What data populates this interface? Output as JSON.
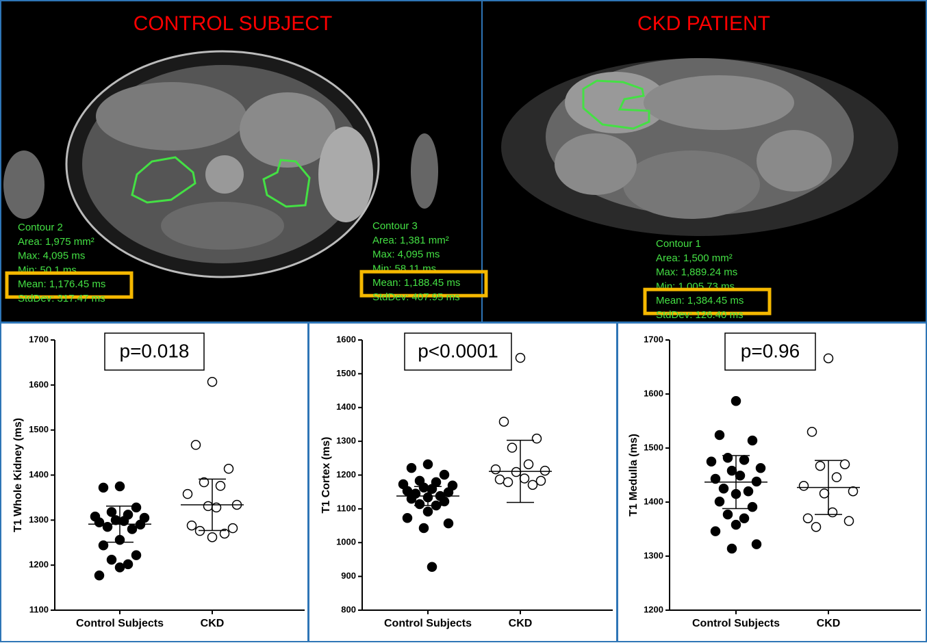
{
  "images": [
    {
      "title": "CONTROL SUBJECT",
      "contours": [
        {
          "lines": [
            "Contour 2",
            "Area: 1,975 mm²",
            "Max: 4,095 ms",
            "Min: 50.1 ms",
            "Mean: 1,176.45 ms",
            "StdDev: 317.47 ms"
          ]
        },
        {
          "lines": [
            "Contour 3",
            "Area: 1,381 mm²",
            "Max: 4,095 ms",
            "Min: 58.11 ms",
            "Mean: 1,188.45 ms",
            "StdDev: 407.95 ms"
          ]
        }
      ]
    },
    {
      "title": "CKD PATIENT",
      "contours": [
        {
          "lines": [
            "Contour 1",
            "Area: 1,500 mm²",
            "Max: 1,889.24 ms",
            "Min: 1,005.73 ms",
            "Mean: 1,384.45 ms",
            "StdDev: 126.40 ms"
          ]
        }
      ]
    }
  ],
  "chart_data": [
    {
      "type": "scatter",
      "annotation": "p=0.018",
      "y_label": "T1 Whole Kidney (ms)",
      "categories": [
        "Control Subjects",
        "CKD"
      ],
      "points": [
        [
          1375,
          1372,
          1328,
          1318,
          1312,
          1308,
          1305,
          1300,
          1298,
          1295,
          1290,
          1285,
          1280,
          1256,
          1244,
          1222,
          1212,
          1202,
          1195,
          1177
        ],
        [
          1607,
          1467,
          1414,
          1384,
          1376,
          1358,
          1334,
          1331,
          1328,
          1288,
          1282,
          1276,
          1270,
          1262
        ]
      ],
      "fills": [
        "#000000",
        "#ffffff"
      ],
      "means": [
        1291,
        1334
      ],
      "sds": [
        40,
        57
      ],
      "ylim": [
        1100,
        1700
      ],
      "yticks": [
        1100,
        1200,
        1300,
        1400,
        1500,
        1600,
        1700
      ]
    },
    {
      "type": "scatter",
      "annotation": "p<0.0001",
      "y_label": "T1 Cortex (ms)",
      "categories": [
        "Control Subjects",
        "CKD"
      ],
      "points": [
        [
          1232,
          1221,
          1201,
          1183,
          1179,
          1173,
          1169,
          1163,
          1159,
          1153,
          1149,
          1145,
          1138,
          1134,
          1130,
          1122,
          1114,
          1110,
          1092,
          1073,
          1057,
          1043,
          928
        ],
        [
          1547,
          1358,
          1308,
          1281,
          1232,
          1217,
          1213,
          1209,
          1190,
          1187,
          1183,
          1179,
          1171
        ]
      ],
      "fills": [
        "#000000",
        "#ffffff"
      ],
      "means": [
        1138,
        1211
      ],
      "sds": [
        28,
        92
      ],
      "ylim": [
        800,
        1600
      ],
      "yticks": [
        800,
        900,
        1000,
        1100,
        1200,
        1300,
        1400,
        1500,
        1600
      ]
    },
    {
      "type": "scatter",
      "annotation": "p=0.96",
      "y_label": "T1 Medulla (ms)",
      "categories": [
        "Control Subjects",
        "CKD"
      ],
      "points": [
        [
          1587,
          1524,
          1514,
          1482,
          1478,
          1475,
          1463,
          1458,
          1449,
          1443,
          1438,
          1425,
          1420,
          1415,
          1401,
          1391,
          1377,
          1370,
          1358,
          1346,
          1322,
          1314
        ],
        [
          1666,
          1530,
          1470,
          1467,
          1446,
          1430,
          1420,
          1416,
          1381,
          1370,
          1365,
          1354
        ]
      ],
      "fills": [
        "#000000",
        "#ffffff"
      ],
      "means": [
        1437,
        1427
      ],
      "sds": [
        49,
        50
      ],
      "ylim": [
        1200,
        1700
      ],
      "yticks": [
        1200,
        1300,
        1400,
        1500,
        1600,
        1700
      ]
    }
  ]
}
